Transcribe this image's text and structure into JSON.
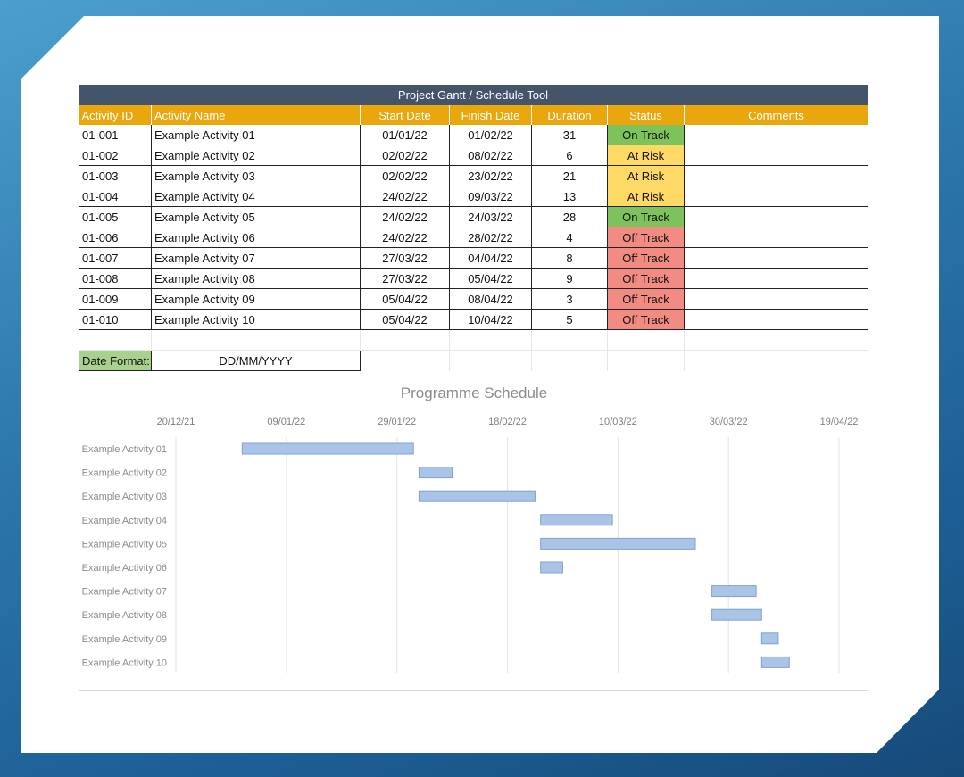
{
  "sheet": {
    "title": "Project Gantt / Schedule Tool",
    "headers": [
      "Activity ID",
      "Activity Name",
      "Start Date",
      "Finish Date",
      "Duration",
      "Status",
      "Comments"
    ],
    "rows": [
      {
        "id": "01-001",
        "name": "Example Activity 01",
        "start": "01/01/22",
        "finish": "01/02/22",
        "duration": "31",
        "status": "On Track",
        "comments": ""
      },
      {
        "id": "01-002",
        "name": "Example Activity 02",
        "start": "02/02/22",
        "finish": "08/02/22",
        "duration": "6",
        "status": "At Risk",
        "comments": ""
      },
      {
        "id": "01-003",
        "name": "Example Activity 03",
        "start": "02/02/22",
        "finish": "23/02/22",
        "duration": "21",
        "status": "At Risk",
        "comments": ""
      },
      {
        "id": "01-004",
        "name": "Example Activity 04",
        "start": "24/02/22",
        "finish": "09/03/22",
        "duration": "13",
        "status": "At Risk",
        "comments": ""
      },
      {
        "id": "01-005",
        "name": "Example Activity 05",
        "start": "24/02/22",
        "finish": "24/03/22",
        "duration": "28",
        "status": "On Track",
        "comments": ""
      },
      {
        "id": "01-006",
        "name": "Example Activity 06",
        "start": "24/02/22",
        "finish": "28/02/22",
        "duration": "4",
        "status": "Off Track",
        "comments": ""
      },
      {
        "id": "01-007",
        "name": "Example Activity 07",
        "start": "27/03/22",
        "finish": "04/04/22",
        "duration": "8",
        "status": "Off Track",
        "comments": ""
      },
      {
        "id": "01-008",
        "name": "Example Activity 08",
        "start": "27/03/22",
        "finish": "05/04/22",
        "duration": "9",
        "status": "Off Track",
        "comments": ""
      },
      {
        "id": "01-009",
        "name": "Example Activity 09",
        "start": "05/04/22",
        "finish": "08/04/22",
        "duration": "3",
        "status": "Off Track",
        "comments": ""
      },
      {
        "id": "01-010",
        "name": "Example Activity 10",
        "start": "05/04/22",
        "finish": "10/04/22",
        "duration": "5",
        "status": "Off Track",
        "comments": ""
      }
    ],
    "date_format_label": "Date Format:",
    "date_format_value": "DD/MM/YYYY"
  },
  "colors": {
    "header_bar": "#44546a",
    "column_header": "#e9a60d",
    "on_track": "#7dc25a",
    "at_risk": "#ffd966",
    "off_track": "#f28b82",
    "gantt_bar": "#a9c4e6"
  },
  "chart_data": {
    "type": "bar",
    "orientation": "horizontal",
    "title": "Programme Schedule",
    "x_ticks": [
      "20/12/21",
      "09/01/22",
      "29/01/22",
      "18/02/22",
      "10/03/22",
      "30/03/22",
      "19/04/22"
    ],
    "x_range": [
      "2021-12-20",
      "2022-04-19"
    ],
    "grid": true,
    "categories": [
      "Example Activity 01",
      "Example Activity 02",
      "Example Activity 03",
      "Example Activity 04",
      "Example Activity 05",
      "Example Activity 06",
      "Example Activity 07",
      "Example Activity 08",
      "Example Activity 09",
      "Example Activity 10"
    ],
    "tasks": [
      {
        "start": "2022-01-01",
        "finish": "2022-02-01"
      },
      {
        "start": "2022-02-02",
        "finish": "2022-02-08"
      },
      {
        "start": "2022-02-02",
        "finish": "2022-02-23"
      },
      {
        "start": "2022-02-24",
        "finish": "2022-03-09"
      },
      {
        "start": "2022-02-24",
        "finish": "2022-03-24"
      },
      {
        "start": "2022-02-24",
        "finish": "2022-02-28"
      },
      {
        "start": "2022-03-27",
        "finish": "2022-04-04"
      },
      {
        "start": "2022-03-27",
        "finish": "2022-04-05"
      },
      {
        "start": "2022-04-05",
        "finish": "2022-04-08"
      },
      {
        "start": "2022-04-05",
        "finish": "2022-04-10"
      }
    ]
  }
}
